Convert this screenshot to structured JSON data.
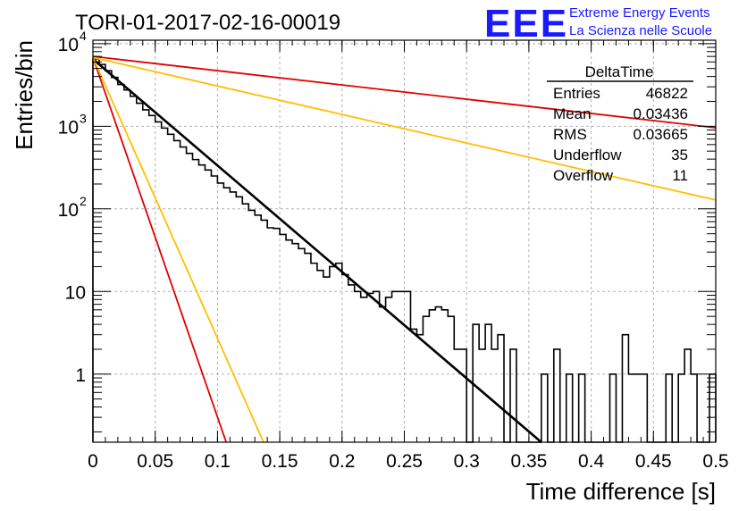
{
  "header": {
    "run_title": "TORI-01-2017-02-16-00019",
    "logo_text": "EEE",
    "logo_line1": "Extreme Energy Events",
    "logo_line2": "La Scienza nelle Scuole",
    "logo_color": "#1a1aff"
  },
  "stats": {
    "title": "DeltaTime",
    "rows": [
      {
        "label": "Entries",
        "value": "46822"
      },
      {
        "label": "Mean",
        "value": "0.03436"
      },
      {
        "label": "RMS",
        "value": "0.03665"
      },
      {
        "label": "Underflow",
        "value": "35"
      },
      {
        "label": "Overflow",
        "value": "11"
      }
    ]
  },
  "chart_data": {
    "type": "line",
    "title": "TORI-01-2017-02-16-00019",
    "xlabel": "Time difference [s]",
    "ylabel": "Entries/bin",
    "xlim": [
      0,
      0.5
    ],
    "ylim": [
      0.15,
      11000
    ],
    "yscale": "log",
    "grid": true,
    "x_ticks": [
      "0",
      "0.05",
      "0.1",
      "0.15",
      "0.2",
      "0.25",
      "0.3",
      "0.35",
      "0.4",
      "0.45",
      "0.5"
    ],
    "x_tick_values": [
      0,
      0.05,
      0.1,
      0.15,
      0.2,
      0.25,
      0.3,
      0.35,
      0.4,
      0.45,
      0.5
    ],
    "y_ticks": [
      {
        "value": 10000,
        "base": "10",
        "exp": "4"
      },
      {
        "value": 1000,
        "base": "10",
        "exp": "3"
      },
      {
        "value": 100,
        "base": "10",
        "exp": "2"
      },
      {
        "value": 10,
        "base": "10",
        "exp": ""
      },
      {
        "value": 1,
        "base": "1",
        "exp": ""
      }
    ],
    "histogram": {
      "bin_width": 0.005,
      "counts": [
        6500,
        5600,
        4700,
        3900,
        3200,
        2750,
        2300,
        1900,
        1580,
        1350,
        1130,
        950,
        800,
        670,
        560,
        470,
        395,
        340,
        295,
        250,
        205,
        180,
        160,
        140,
        115,
        96,
        84,
        73,
        59,
        58,
        49,
        42,
        38,
        33,
        29,
        22,
        18,
        15,
        20,
        22,
        16,
        12,
        10,
        8.5,
        9.5,
        10,
        6.5,
        8.5,
        10,
        10,
        10,
        3.5,
        3,
        5,
        6,
        6.5,
        6,
        5,
        2,
        2,
        0,
        4,
        2,
        4,
        2,
        3,
        0,
        2,
        0,
        0,
        0,
        0,
        1,
        0,
        2,
        0,
        1,
        0,
        1,
        0,
        0,
        0,
        0,
        1,
        0,
        3,
        1,
        1,
        1,
        0,
        0,
        0,
        1,
        0,
        1,
        2,
        1,
        0,
        0,
        1
      ]
    },
    "series": [
      {
        "name": "",
        "color": "#000000",
        "x": [
          0,
          0.36
        ],
        "y": [
          6500,
          0.15
        ]
      },
      {
        "name": "",
        "color": "#e00000",
        "x": [
          0,
          0.5
        ],
        "y": [
          7000,
          960
        ]
      },
      {
        "name": "",
        "color": "#ffbf00",
        "x": [
          0,
          0.5
        ],
        "y": [
          6800,
          128
        ]
      },
      {
        "name": "",
        "color": "#e00000",
        "x": [
          0,
          0.107
        ],
        "y": [
          6800,
          0.15
        ]
      },
      {
        "name": "",
        "color": "#ffbf00",
        "x": [
          0,
          0.137
        ],
        "y": [
          6800,
          0.15
        ]
      }
    ]
  }
}
